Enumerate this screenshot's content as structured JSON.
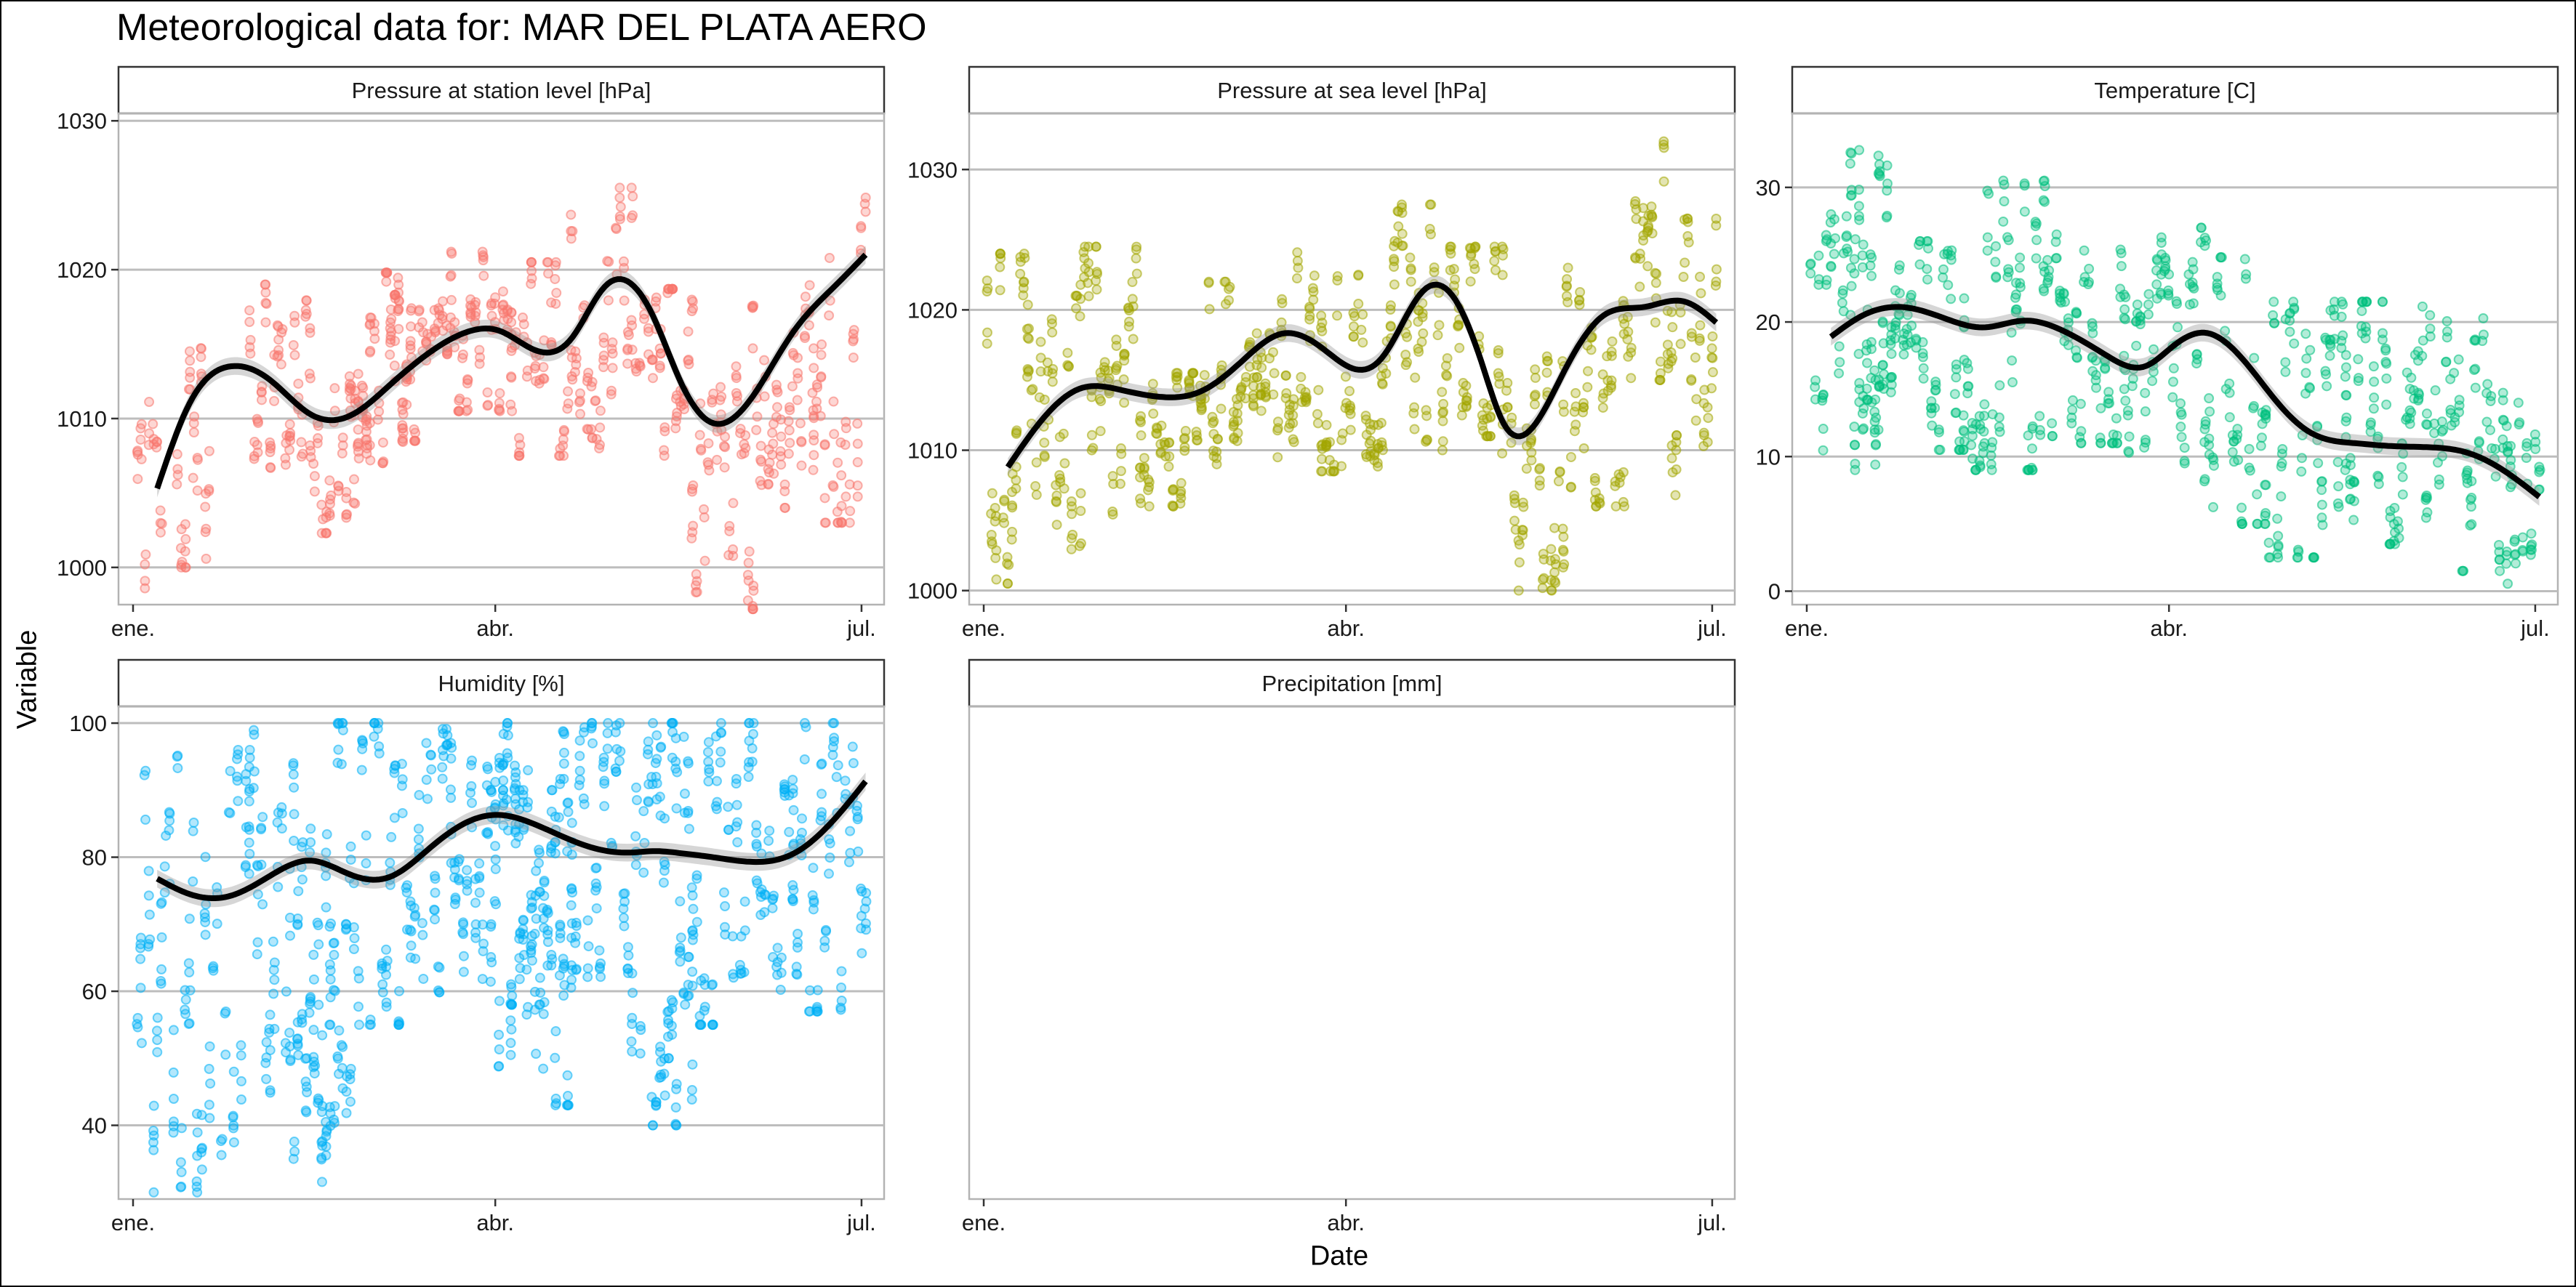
{
  "title": "Meteorological data for: MAR DEL PLATA AERO",
  "xlabel": "Date",
  "ylabel": "Variable",
  "chart_data": [
    {
      "type": "scatter",
      "panel": "Pressure at station level [hPa]",
      "color": "#F8766D",
      "x_ticks": [
        "ene.",
        "abr.",
        "jul."
      ],
      "y_ticks": [
        1000,
        1010,
        1020,
        1030
      ],
      "ylim": [
        997.5,
        1030.5
      ],
      "xlim": [
        1,
        184
      ],
      "grid": true,
      "smooth": {
        "x": [
          7,
          15,
          25,
          35,
          45,
          55,
          65,
          75,
          85,
          92,
          100,
          110,
          118,
          125,
          130,
          137,
          145,
          155,
          165,
          175,
          183
        ],
        "y": [
          1005.3,
          1011,
          1013.5,
          1012.6,
          1010.3,
          1010.2,
          1012.3,
          1014.5,
          1015.9,
          1015.9,
          1014.7,
          1015.4,
          1018.8,
          1019,
          1017,
          1012.5,
          1009.7,
          1011.5,
          1015.8,
          1018.8,
          1021
        ]
      },
      "scatter_runs": [
        {
          "x0": 2,
          "x1": 8,
          "lo": 997.8,
          "hi": 1012
        },
        {
          "x0": 12,
          "x1": 20,
          "lo": 1000,
          "hi": 1021
        },
        {
          "x0": 30,
          "x1": 45,
          "lo": 1005,
          "hi": 1019
        },
        {
          "x0": 45,
          "x1": 60,
          "lo": 1002.3,
          "hi": 1013
        },
        {
          "x0": 55,
          "x1": 70,
          "lo": 1007,
          "hi": 1019.8
        },
        {
          "x0": 65,
          "x1": 80,
          "lo": 1008.5,
          "hi": 1018.3
        },
        {
          "x0": 80,
          "x1": 95,
          "lo": 1010.5,
          "hi": 1021.2
        },
        {
          "x0": 95,
          "x1": 110,
          "lo": 1007.5,
          "hi": 1020.5
        },
        {
          "x0": 110,
          "x1": 125,
          "lo": 1008,
          "hi": 1025.5
        },
        {
          "x0": 125,
          "x1": 140,
          "lo": 1007.5,
          "hi": 1018.7
        },
        {
          "x0": 140,
          "x1": 155,
          "lo": 997.2,
          "hi": 1013.5
        },
        {
          "x0": 155,
          "x1": 170,
          "lo": 1004,
          "hi": 1020
        },
        {
          "x0": 170,
          "x1": 183,
          "lo": 1003,
          "hi": 1029
        }
      ]
    },
    {
      "type": "scatter",
      "panel": "Pressure at sea level [hPa]",
      "color": "#A3A500",
      "x_ticks": [
        "ene.",
        "abr.",
        "jul."
      ],
      "y_ticks": [
        1000,
        1010,
        1020,
        1030
      ],
      "ylim": [
        999,
        1034
      ],
      "xlim": [
        1,
        184
      ],
      "grid": true,
      "smooth": {
        "x": [
          7,
          15,
          25,
          35,
          45,
          55,
          65,
          75,
          85,
          92,
          100,
          110,
          118,
          125,
          130,
          137,
          145,
          155,
          165,
          175,
          183
        ],
        "y": [
          1008.8,
          1012,
          1014.4,
          1014.3,
          1013.8,
          1014.2,
          1016.3,
          1018.3,
          1017.3,
          1015.9,
          1016.6,
          1021.3,
          1020.8,
          1016,
          1012,
          1011.5,
          1015.5,
          1019.6,
          1020.2,
          1020.6,
          1019.1
        ]
      },
      "scatter_runs": [
        {
          "x0": 2,
          "x1": 12,
          "lo": 1000.5,
          "hi": 1024
        },
        {
          "x0": 12,
          "x1": 25,
          "lo": 1002,
          "hi": 1021
        },
        {
          "x0": 25,
          "x1": 40,
          "lo": 1005,
          "hi": 1024.5
        },
        {
          "x0": 40,
          "x1": 55,
          "lo": 1006,
          "hi": 1015.5
        },
        {
          "x0": 55,
          "x1": 70,
          "lo": 1009,
          "hi": 1022
        },
        {
          "x0": 70,
          "x1": 85,
          "lo": 1009.5,
          "hi": 1024.5
        },
        {
          "x0": 85,
          "x1": 100,
          "lo": 1008.5,
          "hi": 1022.5
        },
        {
          "x0": 100,
          "x1": 115,
          "lo": 1010,
          "hi": 1027.5
        },
        {
          "x0": 115,
          "x1": 130,
          "lo": 1011,
          "hi": 1024.5
        },
        {
          "x0": 130,
          "x1": 145,
          "lo": 1000,
          "hi": 1017
        },
        {
          "x0": 145,
          "x1": 160,
          "lo": 1006,
          "hi": 1023
        },
        {
          "x0": 160,
          "x1": 172,
          "lo": 1015,
          "hi": 1032
        },
        {
          "x0": 172,
          "x1": 183,
          "lo": 1006,
          "hi": 1026.5
        }
      ]
    },
    {
      "type": "scatter",
      "panel": "Temperature [C]",
      "color": "#00BF7D",
      "x_ticks": [
        "ene.",
        "abr.",
        "jul."
      ],
      "y_ticks": [
        0,
        10,
        20,
        30
      ],
      "ylim": [
        -1,
        35.5
      ],
      "xlim": [
        1,
        184
      ],
      "grid": true,
      "smooth": {
        "x": [
          7,
          15,
          25,
          35,
          45,
          55,
          65,
          75,
          85,
          92,
          100,
          110,
          118,
          125,
          130,
          137,
          145,
          155,
          165,
          175,
          183
        ],
        "y": [
          18.9,
          20.5,
          21.1,
          20.3,
          19.6,
          20.1,
          19.3,
          17.6,
          16.7,
          18.2,
          19.2,
          17,
          14,
          12,
          11.3,
          11,
          10.8,
          10.7,
          10.3,
          8.8,
          7
        ]
      },
      "scatter_runs": [
        {
          "x0": 2,
          "x1": 20,
          "lo": 9,
          "hi": 28
        },
        {
          "x0": 12,
          "x1": 22,
          "lo": 12,
          "hi": 34.3
        },
        {
          "x0": 22,
          "x1": 40,
          "lo": 10.5,
          "hi": 26
        },
        {
          "x0": 40,
          "x1": 60,
          "lo": 9,
          "hi": 30.5
        },
        {
          "x0": 60,
          "x1": 80,
          "lo": 11,
          "hi": 26.5
        },
        {
          "x0": 80,
          "x1": 100,
          "lo": 9.5,
          "hi": 27
        },
        {
          "x0": 100,
          "x1": 115,
          "lo": 5,
          "hi": 24.8
        },
        {
          "x0": 115,
          "x1": 135,
          "lo": 2.5,
          "hi": 21.5
        },
        {
          "x0": 135,
          "x1": 155,
          "lo": 3.5,
          "hi": 21.5
        },
        {
          "x0": 155,
          "x1": 175,
          "lo": 1.5,
          "hi": 20.5
        },
        {
          "x0": 175,
          "x1": 183,
          "lo": 0.2,
          "hi": 14
        }
      ]
    },
    {
      "type": "scatter",
      "panel": "Humidity [%]",
      "color": "#00B0F6",
      "x_ticks": [
        "ene.",
        "abr.",
        "jul."
      ],
      "y_ticks": [
        40,
        60,
        80,
        100
      ],
      "ylim": [
        29,
        102.5
      ],
      "xlim": [
        1,
        184
      ],
      "grid": true,
      "smooth": {
        "x": [
          7,
          15,
          25,
          35,
          45,
          55,
          65,
          75,
          85,
          92,
          100,
          110,
          118,
          125,
          130,
          137,
          145,
          155,
          165,
          175,
          183
        ],
        "y": [
          76.8,
          74.5,
          74.2,
          77.2,
          79.5,
          77.4,
          77.1,
          81.5,
          85.5,
          86.3,
          85.1,
          82.5,
          81,
          80.7,
          80.9,
          80.6,
          80,
          79.3,
          80.5,
          85.5,
          91.3
        ]
      },
      "scatter_runs": [
        {
          "x0": 2,
          "x1": 30,
          "lo": 30,
          "hi": 96
        },
        {
          "x0": 30,
          "x1": 50,
          "lo": 42,
          "hi": 100
        },
        {
          "x0": 40,
          "x1": 55,
          "lo": 31,
          "hi": 60
        },
        {
          "x0": 50,
          "x1": 80,
          "lo": 55,
          "hi": 100
        },
        {
          "x0": 80,
          "x1": 110,
          "lo": 58,
          "hi": 100
        },
        {
          "x0": 90,
          "x1": 110,
          "lo": 43,
          "hi": 90
        },
        {
          "x0": 110,
          "x1": 140,
          "lo": 50,
          "hi": 100
        },
        {
          "x0": 130,
          "x1": 140,
          "lo": 40,
          "hi": 68
        },
        {
          "x0": 140,
          "x1": 165,
          "lo": 55,
          "hi": 100
        },
        {
          "x0": 165,
          "x1": 183,
          "lo": 57,
          "hi": 100
        }
      ]
    },
    {
      "type": "scatter",
      "panel": "Precipitation [mm]",
      "color": "#E76BF3",
      "x_ticks": [
        "ene.",
        "abr.",
        "jul."
      ],
      "y_ticks": [],
      "xlim": [
        1,
        184
      ],
      "grid": false,
      "smooth": null,
      "scatter_runs": []
    }
  ]
}
